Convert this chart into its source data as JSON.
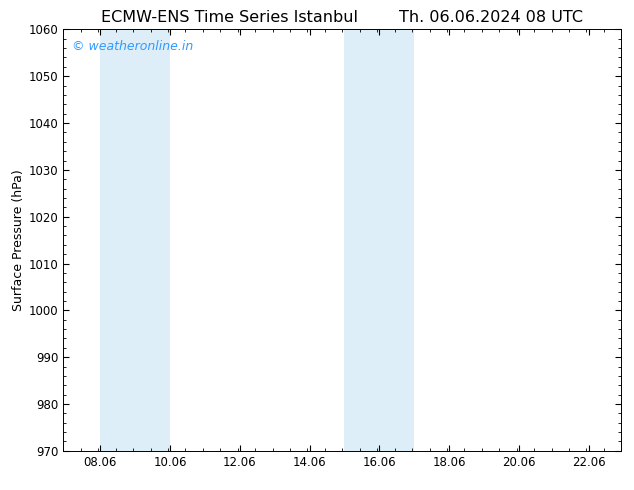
{
  "title_left": "ECMW-ENS Time Series Istanbul",
  "title_right": "Th. 06.06.2024 08 UTC",
  "ylabel": "Surface Pressure (hPa)",
  "xlim": [
    7.0,
    23.0
  ],
  "ylim": [
    970,
    1060
  ],
  "yticks": [
    970,
    980,
    990,
    1000,
    1010,
    1020,
    1030,
    1040,
    1050,
    1060
  ],
  "xticks": [
    8.06,
    10.06,
    12.06,
    14.06,
    16.06,
    18.06,
    20.06,
    22.06
  ],
  "xtick_labels": [
    "08.06",
    "10.06",
    "12.06",
    "14.06",
    "16.06",
    "18.06",
    "20.06",
    "22.06"
  ],
  "shaded_regions": [
    [
      8.06,
      9.06
    ],
    [
      9.06,
      10.06
    ],
    [
      15.06,
      16.06
    ],
    [
      16.06,
      17.06
    ]
  ],
  "shade_color": "#ddeef8",
  "background_color": "#ffffff",
  "watermark": "© weatheronline.in",
  "watermark_color": "#3399ff",
  "title_color": "#000000",
  "axis_label_color": "#000000",
  "tick_color": "#000000",
  "title_fontsize": 11.5,
  "ylabel_fontsize": 9,
  "watermark_fontsize": 9,
  "xtick_fontsize": 8.5,
  "ytick_fontsize": 8.5
}
